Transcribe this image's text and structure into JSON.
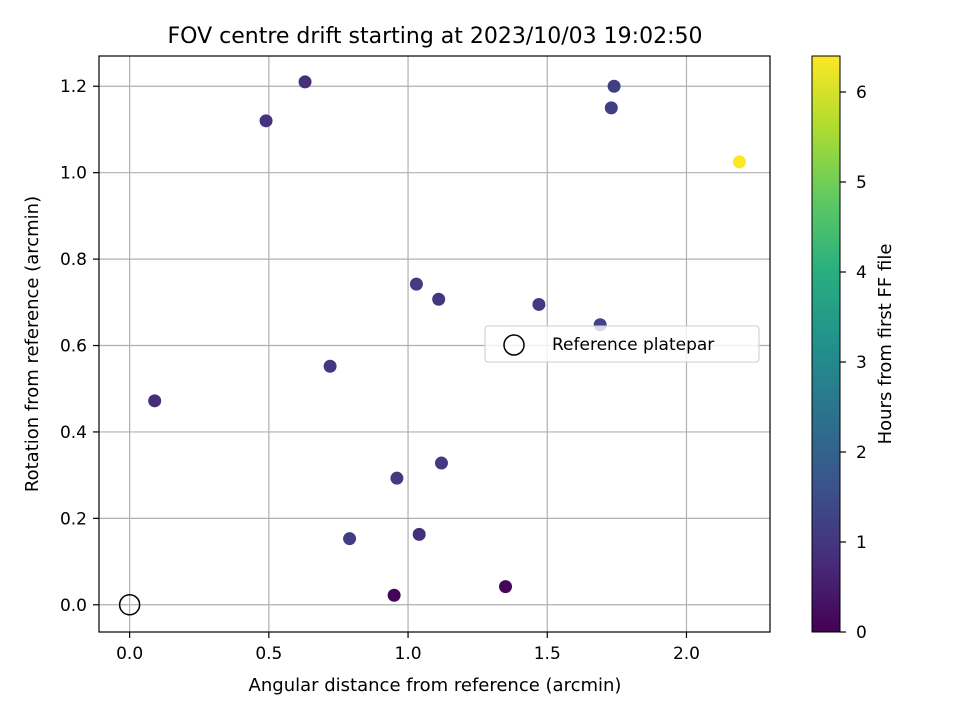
{
  "chart_data": {
    "type": "scatter",
    "title": "FOV centre drift starting at 2023/10/03 19:02:50",
    "xlabel": "Angular distance from reference (arcmin)",
    "ylabel": "Rotation from reference (arcmin)",
    "xlim": [
      -0.11,
      2.3
    ],
    "ylim": [
      -0.063,
      1.27
    ],
    "xticks": [
      0.0,
      0.5,
      1.0,
      1.5,
      2.0
    ],
    "xtick_labels": [
      "0.0",
      "0.5",
      "1.0",
      "1.5",
      "2.0"
    ],
    "yticks": [
      0.0,
      0.2,
      0.4,
      0.6,
      0.8,
      1.0,
      1.2
    ],
    "ytick_labels": [
      "0.0",
      "0.2",
      "0.4",
      "0.6",
      "0.8",
      "1.0",
      "1.2"
    ],
    "grid": true,
    "legend": {
      "placement": "center-right",
      "entries": [
        "Reference platepar"
      ]
    },
    "reference_point": {
      "x": 0.0,
      "y": 0.0
    },
    "colormap": "viridis",
    "colorbar": {
      "label": "Hours from first FF file",
      "range": [
        0,
        6.4
      ],
      "ticks": [
        0,
        1,
        2,
        3,
        4,
        5,
        6
      ],
      "tick_labels": [
        "0",
        "1",
        "2",
        "3",
        "4",
        "5",
        "6"
      ]
    },
    "points": [
      {
        "x": 0.63,
        "y": 1.21,
        "hours": 0.85
      },
      {
        "x": 0.49,
        "y": 1.12,
        "hours": 0.9
      },
      {
        "x": 1.74,
        "y": 1.2,
        "hours": 1.2
      },
      {
        "x": 1.73,
        "y": 1.15,
        "hours": 1.2
      },
      {
        "x": 2.19,
        "y": 1.025,
        "hours": 6.4
      },
      {
        "x": 1.03,
        "y": 0.742,
        "hours": 1.1
      },
      {
        "x": 1.11,
        "y": 0.707,
        "hours": 1.0
      },
      {
        "x": 1.47,
        "y": 0.695,
        "hours": 1.1
      },
      {
        "x": 1.69,
        "y": 0.648,
        "hours": 1.3
      },
      {
        "x": 0.72,
        "y": 0.552,
        "hours": 1.0
      },
      {
        "x": 0.09,
        "y": 0.472,
        "hours": 0.8
      },
      {
        "x": 1.12,
        "y": 0.328,
        "hours": 1.1
      },
      {
        "x": 0.96,
        "y": 0.293,
        "hours": 1.1
      },
      {
        "x": 0.79,
        "y": 0.153,
        "hours": 1.15
      },
      {
        "x": 1.04,
        "y": 0.163,
        "hours": 0.85
      },
      {
        "x": 0.95,
        "y": 0.022,
        "hours": 0.1
      },
      {
        "x": 1.35,
        "y": 0.042,
        "hours": 0.1
      }
    ]
  }
}
